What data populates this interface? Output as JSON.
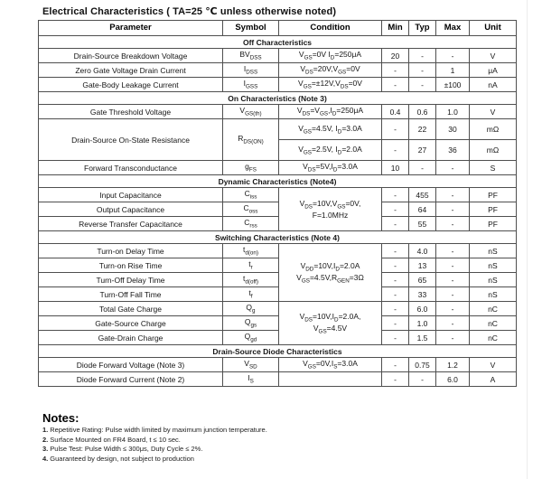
{
  "page": {
    "title": "Electrical Characteristics ( TA=25 ℃ unless otherwise noted)"
  },
  "table": {
    "headers": [
      "Parameter",
      "Symbol",
      "Condition",
      "Min",
      "Typ",
      "Max",
      "Unit"
    ],
    "rows": [
      {
        "label": "Off Characteristics"
      },
      {
        "param": "Drain-Source Breakdown Voltage",
        "symbol": [
          [
            {
              "t": "BV"
            },
            {
              "s": "DSS"
            }
          ]
        ],
        "cond": [
          [
            {
              "t": "V"
            },
            {
              "s": "GS"
            },
            {
              "t": "=0V I"
            },
            {
              "s": "D"
            },
            {
              "t": "=250μA"
            }
          ]
        ],
        "min": "20",
        "typ": "-",
        "max": "-",
        "unit": "V"
      },
      {
        "param": "Zero Gate Voltage Drain Current",
        "symbol": [
          [
            {
              "t": "I"
            },
            {
              "s": "DSS"
            }
          ]
        ],
        "cond": [
          [
            {
              "t": "V"
            },
            {
              "s": "DS"
            },
            {
              "t": "=20V,V"
            },
            {
              "s": "GS"
            },
            {
              "t": "=0V"
            }
          ]
        ],
        "min": "-",
        "typ": "-",
        "max": "1",
        "unit": "μA"
      },
      {
        "param": "Gate-Body Leakage Current",
        "symbol": [
          [
            {
              "t": "I"
            },
            {
              "s": "GSS"
            }
          ]
        ],
        "cond": [
          [
            {
              "t": "V"
            },
            {
              "s": "GS"
            },
            {
              "t": "=±12V,V"
            },
            {
              "s": "DS"
            },
            {
              "t": "=0V"
            }
          ]
        ],
        "min": "-",
        "typ": "-",
        "max": "±100",
        "unit": "nA"
      },
      {
        "label": "On Characteristics (Note 3)"
      },
      {
        "param": "Gate Threshold Voltage",
        "symbol": [
          [
            {
              "t": "V"
            },
            {
              "s": "GS(th)"
            }
          ]
        ],
        "cond": [
          [
            {
              "t": "V"
            },
            {
              "s": "DS"
            },
            {
              "t": "=V"
            },
            {
              "s": "GS"
            },
            {
              "t": ",I"
            },
            {
              "s": "D"
            },
            {
              "t": "=250μA"
            }
          ]
        ],
        "min": "0.4",
        "typ": "0.6",
        "max": "1.0",
        "unit": "V"
      },
      {
        "param": "Drain-Source On-State Resistance",
        "symbol": [
          [
            {
              "t": "R"
            },
            {
              "s": "DS(ON)"
            }
          ]
        ],
        "cond": [
          [
            {
              "t": "V"
            },
            {
              "s": "GS"
            },
            {
              "t": "=4.5V, I"
            },
            {
              "s": "D"
            },
            {
              "t": "=3.0A"
            }
          ]
        ],
        "min": "-",
        "typ": "22",
        "max": "30",
        "unit": "mΩ"
      },
      {
        "cond": [
          [
            {
              "t": "V"
            },
            {
              "s": "GS"
            },
            {
              "t": "=2.5V, I"
            },
            {
              "s": "D"
            },
            {
              "t": "=2.0A"
            }
          ]
        ],
        "min": "-",
        "typ": "27",
        "max": "36",
        "unit": "mΩ"
      },
      {
        "param": "Forward Transconductance",
        "symbol": [
          [
            {
              "t": "g"
            },
            {
              "s": "FS"
            }
          ]
        ],
        "cond": [
          [
            {
              "t": "V"
            },
            {
              "s": "DS"
            },
            {
              "t": "=5V,I"
            },
            {
              "s": "D"
            },
            {
              "t": "=3.0A"
            }
          ]
        ],
        "min": "10",
        "typ": "-",
        "max": "-",
        "unit": "S"
      },
      {
        "label": "Dynamic Characteristics (Note4)"
      },
      {
        "param": "Input Capacitance",
        "symbol": [
          [
            {
              "t": "C"
            },
            {
              "s": "iss"
            }
          ]
        ],
        "cond": [
          [
            {
              "t": "V"
            },
            {
              "s": "DS"
            },
            {
              "t": "=10V,V"
            },
            {
              "s": "GS"
            },
            {
              "t": "=0V,"
            }
          ],
          [
            {
              "t": "F=1.0MHz"
            }
          ]
        ],
        "min": "-",
        "typ": "455",
        "max": "-",
        "unit": "PF"
      },
      {
        "param": "Output Capacitance",
        "symbol": [
          [
            {
              "t": "C"
            },
            {
              "s": "oss"
            }
          ]
        ],
        "min": "-",
        "typ": "64",
        "max": "-",
        "unit": "PF"
      },
      {
        "param": "Reverse Transfer Capacitance",
        "symbol": [
          [
            {
              "t": "C"
            },
            {
              "s": "rss"
            }
          ]
        ],
        "min": "-",
        "typ": "55",
        "max": "-",
        "unit": "PF"
      },
      {
        "label": "Switching Characteristics (Note 4)"
      },
      {
        "param": "Turn-on Delay Time",
        "symbol": [
          [
            {
              "t": "t"
            },
            {
              "s": "d(on)"
            }
          ]
        ],
        "cond": [
          [
            {
              "t": "V"
            },
            {
              "s": "DD"
            },
            {
              "t": "=10V,I"
            },
            {
              "s": "D"
            },
            {
              "t": "=2.0A"
            }
          ],
          [
            {
              "t": "V"
            },
            {
              "s": "GS"
            },
            {
              "t": "=4.5V,R"
            },
            {
              "s": "GEN"
            },
            {
              "t": "=3Ω"
            }
          ]
        ],
        "min": "-",
        "typ": "4.0",
        "max": "-",
        "unit": "nS"
      },
      {
        "param": "Turn-on Rise Time",
        "symbol": [
          [
            {
              "t": "t"
            },
            {
              "s": "r"
            }
          ]
        ],
        "min": "-",
        "typ": "13",
        "max": "-",
        "unit": "nS"
      },
      {
        "param": "Turn-Off Delay Time",
        "symbol": [
          [
            {
              "t": "t"
            },
            {
              "s": "d(off)"
            }
          ]
        ],
        "min": "-",
        "typ": "65",
        "max": "-",
        "unit": "nS"
      },
      {
        "param": "Turn-Off Fall Time",
        "symbol": [
          [
            {
              "t": "t"
            },
            {
              "s": "f"
            }
          ]
        ],
        "min": "-",
        "typ": "33",
        "max": "-",
        "unit": "nS"
      },
      {
        "param": "Total Gate Charge",
        "symbol": [
          [
            {
              "t": "Q"
            },
            {
              "s": "g"
            }
          ]
        ],
        "cond": [
          [
            {
              "t": "V"
            },
            {
              "s": "DS"
            },
            {
              "t": "=10V,I"
            },
            {
              "s": "D"
            },
            {
              "t": "=2.0A,"
            }
          ],
          [
            {
              "t": "V"
            },
            {
              "s": "GS"
            },
            {
              "t": "=4.5V"
            }
          ]
        ],
        "min": "-",
        "typ": "6.0",
        "max": "-",
        "unit": "nC"
      },
      {
        "param": "Gate-Source Charge",
        "symbol": [
          [
            {
              "t": "Q"
            },
            {
              "s": "gs"
            }
          ]
        ],
        "min": "-",
        "typ": "1.0",
        "max": "-",
        "unit": "nC"
      },
      {
        "param": "Gate-Drain Charge",
        "symbol": [
          [
            {
              "t": "Q"
            },
            {
              "s": "gd"
            }
          ]
        ],
        "min": "-",
        "typ": "1.5",
        "max": "-",
        "unit": "nC"
      },
      {
        "label": "Drain-Source Diode Characteristics"
      },
      {
        "param": "Diode Forward Voltage (Note 3)",
        "symbol": [
          [
            {
              "t": "V"
            },
            {
              "s": "SD"
            }
          ]
        ],
        "cond": [
          [
            {
              "t": "V"
            },
            {
              "s": "GS"
            },
            {
              "t": "=0V,I"
            },
            {
              "s": "S"
            },
            {
              "t": "=3.0A"
            }
          ]
        ],
        "min": "-",
        "typ": "0.75",
        "max": "1.2",
        "unit": "V"
      },
      {
        "param": "Diode Forward Current (Note 2)",
        "symbol": [
          [
            {
              "t": "I"
            },
            {
              "s": "S"
            }
          ]
        ],
        "cond": [
          [
            {
              "t": ""
            }
          ]
        ],
        "min": "-",
        "typ": "-",
        "max": "6.0",
        "unit": "A"
      }
    ]
  },
  "notes": {
    "heading": "Notes:",
    "items": [
      {
        "num": "1.",
        "text": "Repetitive Rating: Pulse width limited by maximum junction temperature."
      },
      {
        "num": "2.",
        "text": "Surface Mounted on FR4 Board, t ≤ 10 sec."
      },
      {
        "num": "3.",
        "text": "Pulse Test: Pulse Width ≤ 300μs, Duty Cycle ≤ 2%."
      },
      {
        "num": "4.",
        "text": "Guaranteed by design, not subject to production"
      }
    ]
  }
}
